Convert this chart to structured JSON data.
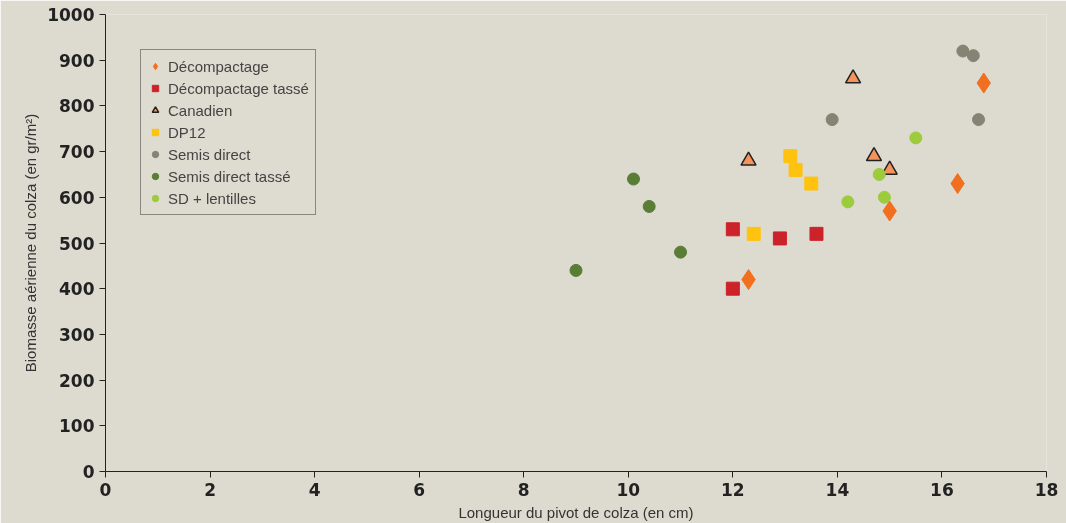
{
  "chart_data": {
    "type": "scatter",
    "xlabel": "Longueur du pivot de colza (en cm)",
    "ylabel": "Biomasse aérienne du colza (en gr/m²)",
    "xlim": [
      0,
      18
    ],
    "ylim": [
      0,
      1000
    ],
    "xticks": [
      0,
      2,
      4,
      6,
      8,
      10,
      12,
      14,
      16,
      18
    ],
    "yticks": [
      0,
      100,
      200,
      300,
      400,
      500,
      600,
      700,
      800,
      900,
      1000
    ],
    "grid": false,
    "legend": "top left",
    "series": [
      {
        "name": "Décompactage",
        "color": "#f07020",
        "marker": "diamond",
        "x": [
          12.3,
          15.0,
          16.3,
          16.8
        ],
        "values": [
          420,
          570,
          630,
          850
        ]
      },
      {
        "name": "Décompactage tassé",
        "color": "#cc2229",
        "marker": "square",
        "x": [
          12.0,
          12.0,
          12.9,
          13.6
        ],
        "values": [
          400,
          530,
          510,
          520
        ]
      },
      {
        "name": "Canadien",
        "color": "#f4945a",
        "marker": "triangle",
        "x": [
          12.3,
          14.3,
          14.7,
          15.0
        ],
        "values": [
          680,
          860,
          690,
          660
        ]
      },
      {
        "name": "DP12",
        "color": "#ffc20e",
        "marker": "square",
        "x": [
          12.4,
          13.1,
          13.2,
          13.5
        ],
        "values": [
          520,
          690,
          660,
          630
        ]
      },
      {
        "name": "Semis direct",
        "color": "#848474",
        "marker": "circle",
        "x": [
          13.9,
          16.4,
          16.6,
          16.7
        ],
        "values": [
          770,
          920,
          910,
          770
        ]
      },
      {
        "name": "Semis direct tassé",
        "color": "#5a7d35",
        "marker": "circle",
        "x": [
          9.0,
          10.1,
          10.4,
          11.0
        ],
        "values": [
          440,
          640,
          580,
          480
        ]
      },
      {
        "name": "SD + lentilles",
        "color": "#9ccb3b",
        "marker": "circle",
        "x": [
          14.2,
          14.8,
          14.9,
          15.5
        ],
        "values": [
          590,
          650,
          600,
          730
        ]
      }
    ]
  }
}
